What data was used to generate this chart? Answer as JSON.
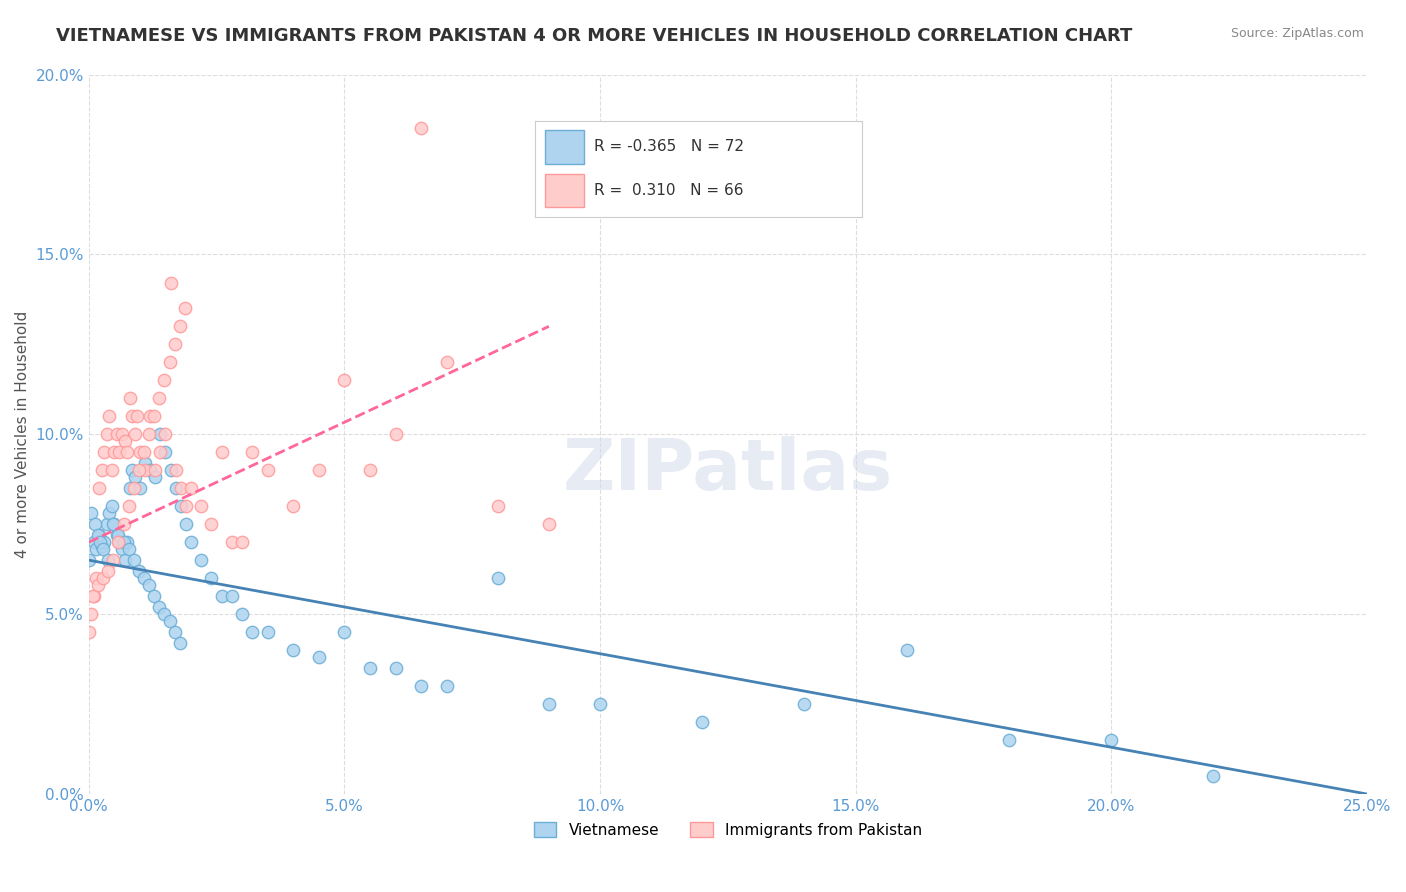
{
  "title": "VIETNAMESE VS IMMIGRANTS FROM PAKISTAN 4 OR MORE VEHICLES IN HOUSEHOLD CORRELATION CHART",
  "source": "Source: ZipAtlas.com",
  "xlabel": "",
  "ylabel": "4 or more Vehicles in Household",
  "xlim": [
    0.0,
    25.0
  ],
  "ylim": [
    0.0,
    20.0
  ],
  "xticks": [
    0.0,
    5.0,
    10.0,
    15.0,
    20.0,
    25.0
  ],
  "yticks": [
    0.0,
    5.0,
    10.0,
    15.0,
    20.0
  ],
  "series": [
    {
      "name": "Vietnamese",
      "R": -0.365,
      "N": 72,
      "color": "#6baed6",
      "marker_facecolor": "#aed4f0",
      "marker_edgecolor": "#6baed6",
      "x": [
        0.0,
        0.1,
        0.15,
        0.2,
        0.25,
        0.3,
        0.35,
        0.4,
        0.45,
        0.5,
        0.55,
        0.6,
        0.65,
        0.7,
        0.75,
        0.8,
        0.85,
        0.9,
        1.0,
        1.1,
        1.2,
        1.3,
        1.4,
        1.5,
        1.6,
        1.7,
        1.8,
        1.9,
        2.0,
        2.2,
        2.4,
        2.6,
        2.8,
        3.0,
        3.2,
        3.5,
        4.0,
        4.5,
        5.0,
        5.5,
        6.0,
        6.5,
        7.0,
        8.0,
        9.0,
        10.0,
        12.0,
        14.0,
        16.0,
        18.0,
        20.0,
        22.0,
        0.05,
        0.12,
        0.18,
        0.22,
        0.28,
        0.38,
        0.48,
        0.58,
        0.68,
        0.78,
        0.88,
        0.98,
        1.08,
        1.18,
        1.28,
        1.38,
        1.48,
        1.58,
        1.68,
        1.78
      ],
      "y": [
        6.5,
        7.0,
        6.8,
        7.2,
        6.9,
        7.0,
        7.5,
        7.8,
        8.0,
        7.5,
        7.2,
        7.0,
        6.8,
        6.5,
        7.0,
        8.5,
        9.0,
        8.8,
        8.5,
        9.2,
        9.0,
        8.8,
        10.0,
        9.5,
        9.0,
        8.5,
        8.0,
        7.5,
        7.0,
        6.5,
        6.0,
        5.5,
        5.5,
        5.0,
        4.5,
        4.5,
        4.0,
        3.8,
        4.5,
        3.5,
        3.5,
        3.0,
        3.0,
        6.0,
        2.5,
        2.5,
        2.0,
        2.5,
        4.0,
        1.5,
        1.5,
        0.5,
        7.8,
        7.5,
        7.2,
        7.0,
        6.8,
        6.5,
        7.5,
        7.2,
        7.0,
        6.8,
        6.5,
        6.2,
        6.0,
        5.8,
        5.5,
        5.2,
        5.0,
        4.8,
        4.5,
        4.2
      ],
      "trend_x": [
        0.0,
        25.0
      ],
      "trend_y": [
        6.5,
        0.0
      ],
      "trend_color": "#4682B4",
      "trend_linestyle": "solid"
    },
    {
      "name": "Immigrants from Pakistan",
      "R": 0.31,
      "N": 66,
      "color": "#ff9999",
      "marker_facecolor": "#ffcccc",
      "marker_edgecolor": "#ff9999",
      "x": [
        0.0,
        0.05,
        0.1,
        0.15,
        0.2,
        0.25,
        0.3,
        0.35,
        0.4,
        0.45,
        0.5,
        0.55,
        0.6,
        0.65,
        0.7,
        0.75,
        0.8,
        0.85,
        0.9,
        0.95,
        1.0,
        1.1,
        1.2,
        1.3,
        1.4,
        1.5,
        1.6,
        1.7,
        1.8,
        1.9,
        2.0,
        2.2,
        2.4,
        2.6,
        2.8,
        3.0,
        3.2,
        3.5,
        4.0,
        4.5,
        5.0,
        5.5,
        6.0,
        6.5,
        7.0,
        8.0,
        9.0,
        0.08,
        0.18,
        0.28,
        0.38,
        0.48,
        0.58,
        0.68,
        0.78,
        0.88,
        0.98,
        1.08,
        1.18,
        1.28,
        1.38,
        1.48,
        1.58,
        1.68,
        1.78,
        1.88
      ],
      "y": [
        4.5,
        5.0,
        5.5,
        6.0,
        8.5,
        9.0,
        9.5,
        10.0,
        10.5,
        9.0,
        9.5,
        10.0,
        9.5,
        10.0,
        9.8,
        9.5,
        11.0,
        10.5,
        10.0,
        10.5,
        9.5,
        9.0,
        10.5,
        9.0,
        9.5,
        10.0,
        14.2,
        9.0,
        8.5,
        8.0,
        8.5,
        8.0,
        7.5,
        9.5,
        7.0,
        7.0,
        9.5,
        9.0,
        8.0,
        9.0,
        11.5,
        9.0,
        10.0,
        18.5,
        12.0,
        8.0,
        7.5,
        5.5,
        5.8,
        6.0,
        6.2,
        6.5,
        7.0,
        7.5,
        8.0,
        8.5,
        9.0,
        9.5,
        10.0,
        10.5,
        11.0,
        11.5,
        12.0,
        12.5,
        13.0,
        13.5
      ],
      "trend_x": [
        0.0,
        9.0
      ],
      "trend_y": [
        7.0,
        13.0
      ],
      "trend_color": "#ff6699",
      "trend_linestyle": "dashed"
    }
  ],
  "legend_entries": [
    {
      "label": "Vietnamese",
      "color": "#aed4f0",
      "edgecolor": "#6baed6"
    },
    {
      "label": "Immigrants from Pakistan",
      "color": "#ffcccc",
      "edgecolor": "#ff9999"
    }
  ],
  "watermark": "ZIPatlas",
  "background_color": "#ffffff",
  "grid_color": "#dddddd",
  "title_fontsize": 13,
  "axis_label_fontsize": 11,
  "tick_fontsize": 11,
  "legend_fontsize": 12
}
